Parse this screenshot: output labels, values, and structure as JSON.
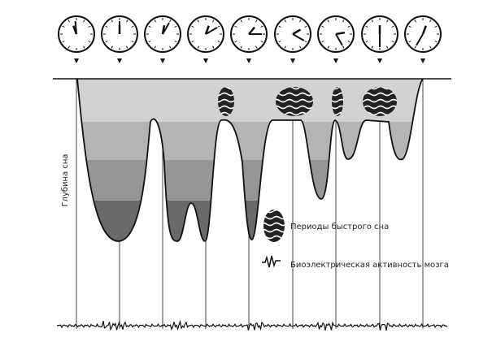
{
  "axis_label": "Глубина сна",
  "legend": {
    "rem": "Периоды быстрого сна",
    "eeg": "Биоэлектрическая активность мозга"
  }
}
